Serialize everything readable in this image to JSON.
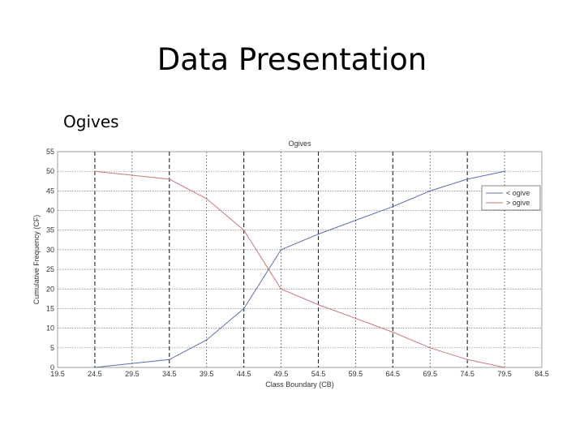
{
  "slide": {
    "title": "Data Presentation",
    "subtitle": "Ogives"
  },
  "chart_data": {
    "type": "line",
    "title": "Ogives",
    "xlabel": "Class Boundary (CB)",
    "ylabel": "Cumulative Frequency (CF)",
    "xlim": [
      19.5,
      84.5
    ],
    "ylim": [
      0,
      55
    ],
    "x_ticks": [
      19.5,
      24.5,
      29.5,
      34.5,
      39.5,
      44.5,
      49.5,
      54.5,
      59.5,
      64.5,
      69.5,
      74.5,
      79.5,
      84.5
    ],
    "x_tick_labels": [
      "19.5",
      "24.5",
      "29.5",
      "34.5",
      "39.5",
      "44.5",
      "49.5",
      "54.5",
      "59.5",
      "64.5",
      "69.5",
      "74.5",
      "79.5",
      "84.5"
    ],
    "y_ticks": [
      0,
      5,
      10,
      15,
      20,
      25,
      30,
      35,
      40,
      45,
      50,
      55
    ],
    "y_tick_labels": [
      "0",
      "5",
      "10",
      "15",
      "20",
      "25",
      "30",
      "35",
      "40",
      "45",
      "50",
      "55"
    ],
    "grid": true,
    "legend_position": "top-right",
    "series": [
      {
        "name": "< ogive",
        "color": "#5a6fa8",
        "x": [
          24.5,
          34.5,
          39.5,
          44.5,
          49.5,
          54.5,
          59.5,
          64.5,
          69.5,
          74.5,
          79.5
        ],
        "y": [
          0,
          2,
          7,
          15,
          30,
          34,
          37.5,
          41,
          45,
          48,
          50
        ]
      },
      {
        "name": "> ogive",
        "color": "#c97a7a",
        "x": [
          24.5,
          34.5,
          39.5,
          44.5,
          49.5,
          54.5,
          59.5,
          64.5,
          69.5,
          74.5,
          79.5
        ],
        "y": [
          50,
          48,
          43,
          35,
          20,
          16,
          12.5,
          9,
          5,
          2,
          0
        ]
      }
    ]
  }
}
